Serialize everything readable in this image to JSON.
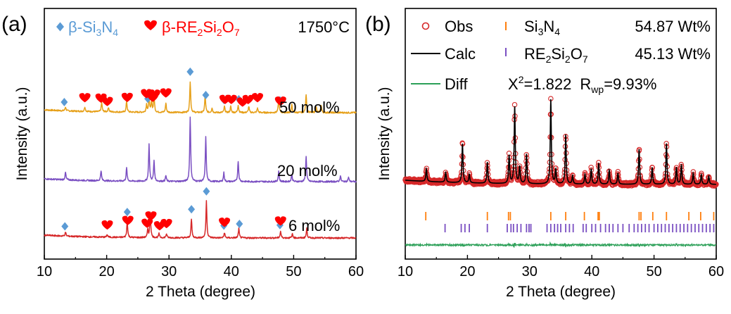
{
  "chart_data": [
    {
      "type": "line",
      "panel_label": "(a)",
      "xlabel": "2 Theta (degree)",
      "ylabel": "Intensity (a.u.)",
      "xlim": [
        10,
        60
      ],
      "xticks": [
        "10",
        "20",
        "30",
        "40",
        "50",
        "60"
      ],
      "legend": [
        {
          "marker": "diamond",
          "color": "#5b9bd5",
          "label_base": "β-Si",
          "sub1": "3",
          "mid": "N",
          "sub2": "4",
          "tail": "",
          "sub3": ""
        },
        {
          "marker": "heart",
          "color": "#ff0000",
          "label_base": "β-RE",
          "sub1": "2",
          "mid": "Si",
          "sub2": "2",
          "tail": "O",
          "sub3": "7"
        }
      ],
      "temperature": "1750°C",
      "series": [
        {
          "name": "50 mol%",
          "color": "#e6a019",
          "peaks": [
            [
              13.4,
              5
            ],
            [
              16.5,
              6
            ],
            [
              19.2,
              12
            ],
            [
              20.3,
              6
            ],
            [
              23.2,
              14
            ],
            [
              26.4,
              10
            ],
            [
              26.8,
              18
            ],
            [
              27.2,
              14
            ],
            [
              27.6,
              22
            ],
            [
              29.5,
              12
            ],
            [
              33.4,
              40
            ],
            [
              35.8,
              22
            ],
            [
              36.9,
              6
            ],
            [
              38.9,
              8
            ],
            [
              39.9,
              8
            ],
            [
              41.1,
              10
            ],
            [
              42.8,
              8
            ],
            [
              44.2,
              6
            ],
            [
              47.6,
              18
            ],
            [
              49.7,
              10
            ],
            [
              52.0,
              24
            ],
            [
              53.6,
              8
            ],
            [
              54.4,
              10
            ]
          ],
          "diamonds": [
            13.2,
            23.3,
            26.6,
            33.4,
            35.9,
            38.8,
            41.2,
            47.8
          ],
          "hearts": [
            16.5,
            19.1,
            20.1,
            23.3,
            26.4,
            27.4,
            27.7,
            29.5,
            39.0,
            40.0,
            41.8,
            42.7,
            44.2,
            47.9
          ]
        },
        {
          "name": "20 mol%",
          "color": "#7a4fc2",
          "peaks": [
            [
              13.4,
              10
            ],
            [
              19.1,
              14
            ],
            [
              23.2,
              18
            ],
            [
              26.8,
              50
            ],
            [
              27.6,
              28
            ],
            [
              29.5,
              8
            ],
            [
              33.4,
              88
            ],
            [
              35.9,
              60
            ],
            [
              38.8,
              12
            ],
            [
              41.1,
              28
            ],
            [
              47.6,
              14
            ],
            [
              49.7,
              10
            ],
            [
              52.0,
              34
            ],
            [
              57.5,
              8
            ],
            [
              58.8,
              6
            ]
          ],
          "diamonds": [],
          "hearts": []
        },
        {
          "name": "6 mol%",
          "color": "#d62728",
          "peaks": [
            [
              13.4,
              6
            ],
            [
              20.1,
              4
            ],
            [
              23.3,
              24
            ],
            [
              26.6,
              12
            ],
            [
              27.0,
              38
            ],
            [
              28.4,
              6
            ],
            [
              29.6,
              6
            ],
            [
              33.6,
              28
            ],
            [
              36.0,
              55
            ],
            [
              38.9,
              8
            ],
            [
              41.2,
              14
            ],
            [
              47.9,
              10
            ],
            [
              49.8,
              6
            ],
            [
              52.1,
              14
            ]
          ],
          "diamonds": [
            13.3,
            23.3,
            26.9,
            33.6,
            36.0,
            38.8,
            41.3,
            47.8
          ],
          "hearts": [
            20.1,
            23.4,
            26.5,
            27.1,
            28.5,
            29.6,
            38.9,
            47.9
          ]
        }
      ]
    },
    {
      "type": "line",
      "panel_label": "(b)",
      "xlabel": "2 Theta (degree)",
      "ylabel": "Intensity (a.u.)",
      "xlim": [
        10,
        60
      ],
      "xticks": [
        "10",
        "20",
        "30",
        "40",
        "50",
        "60"
      ],
      "legend": {
        "obs": "Obs",
        "calc": "Calc",
        "diff": "Diff",
        "phase1_base": "Si",
        "phase1_sub1": "3",
        "phase1_mid": "N",
        "phase1_sub2": "4",
        "phase1_wt": "54.87 Wt%",
        "phase2_base": "RE",
        "phase2_sub1": "2",
        "phase2_mid": "Si",
        "phase2_sub2": "2",
        "phase2_tail": "O",
        "phase2_sub3": "7",
        "phase2_wt": "45.13 Wt%",
        "chi_base": "X",
        "chi_sup": "2",
        "chi_val": "=1.822",
        "r_base": "R",
        "r_sub": "wp",
        "r_val": "=9.93%"
      },
      "colors": {
        "obs": "#d62728",
        "calc": "#000000",
        "diff": "#2ca058",
        "phase1_tick": "#ff7f0e",
        "phase2_tick": "#7a4fc2"
      },
      "peaks": [
        [
          13.4,
          18
        ],
        [
          16.5,
          14
        ],
        [
          19.2,
          56
        ],
        [
          20.3,
          12
        ],
        [
          23.2,
          30
        ],
        [
          26.7,
          40
        ],
        [
          27.6,
          110
        ],
        [
          28.4,
          24
        ],
        [
          29.5,
          42
        ],
        [
          33.4,
          120
        ],
        [
          34.2,
          20
        ],
        [
          35.8,
          70
        ],
        [
          36.9,
          12
        ],
        [
          38.9,
          14
        ],
        [
          39.9,
          22
        ],
        [
          41.1,
          30
        ],
        [
          42.8,
          20
        ],
        [
          44.2,
          16
        ],
        [
          47.6,
          50
        ],
        [
          49.7,
          24
        ],
        [
          52.0,
          58
        ],
        [
          53.6,
          24
        ],
        [
          54.4,
          28
        ],
        [
          56.3,
          16
        ],
        [
          57.6,
          14
        ],
        [
          58.8,
          12
        ]
      ],
      "phase1_ticks": [
        13.3,
        23.2,
        26.6,
        26.9,
        33.4,
        35.8,
        38.8,
        41.0,
        41.2,
        47.6,
        47.9,
        49.8,
        52.0,
        55.6,
        57.5,
        59.6
      ],
      "phase2_ticks": [
        16.4,
        19.0,
        19.6,
        20.3,
        23.2,
        26.4,
        27.0,
        27.4,
        28.0,
        28.6,
        29.5,
        29.9,
        30.2,
        32.8,
        33.4,
        34.0,
        34.5,
        35.0,
        35.8,
        36.4,
        37.0,
        38.6,
        39.1,
        40.0,
        40.6,
        41.4,
        42.2,
        42.8,
        43.4,
        44.2,
        45.0,
        46.0,
        46.8,
        47.4,
        48.0,
        48.6,
        49.2,
        50.0,
        50.6,
        51.2,
        51.8,
        52.4,
        53.0,
        53.6,
        54.2,
        54.8,
        55.4,
        56.0,
        56.6,
        57.2,
        57.8,
        58.4,
        59.0,
        59.6
      ]
    }
  ]
}
